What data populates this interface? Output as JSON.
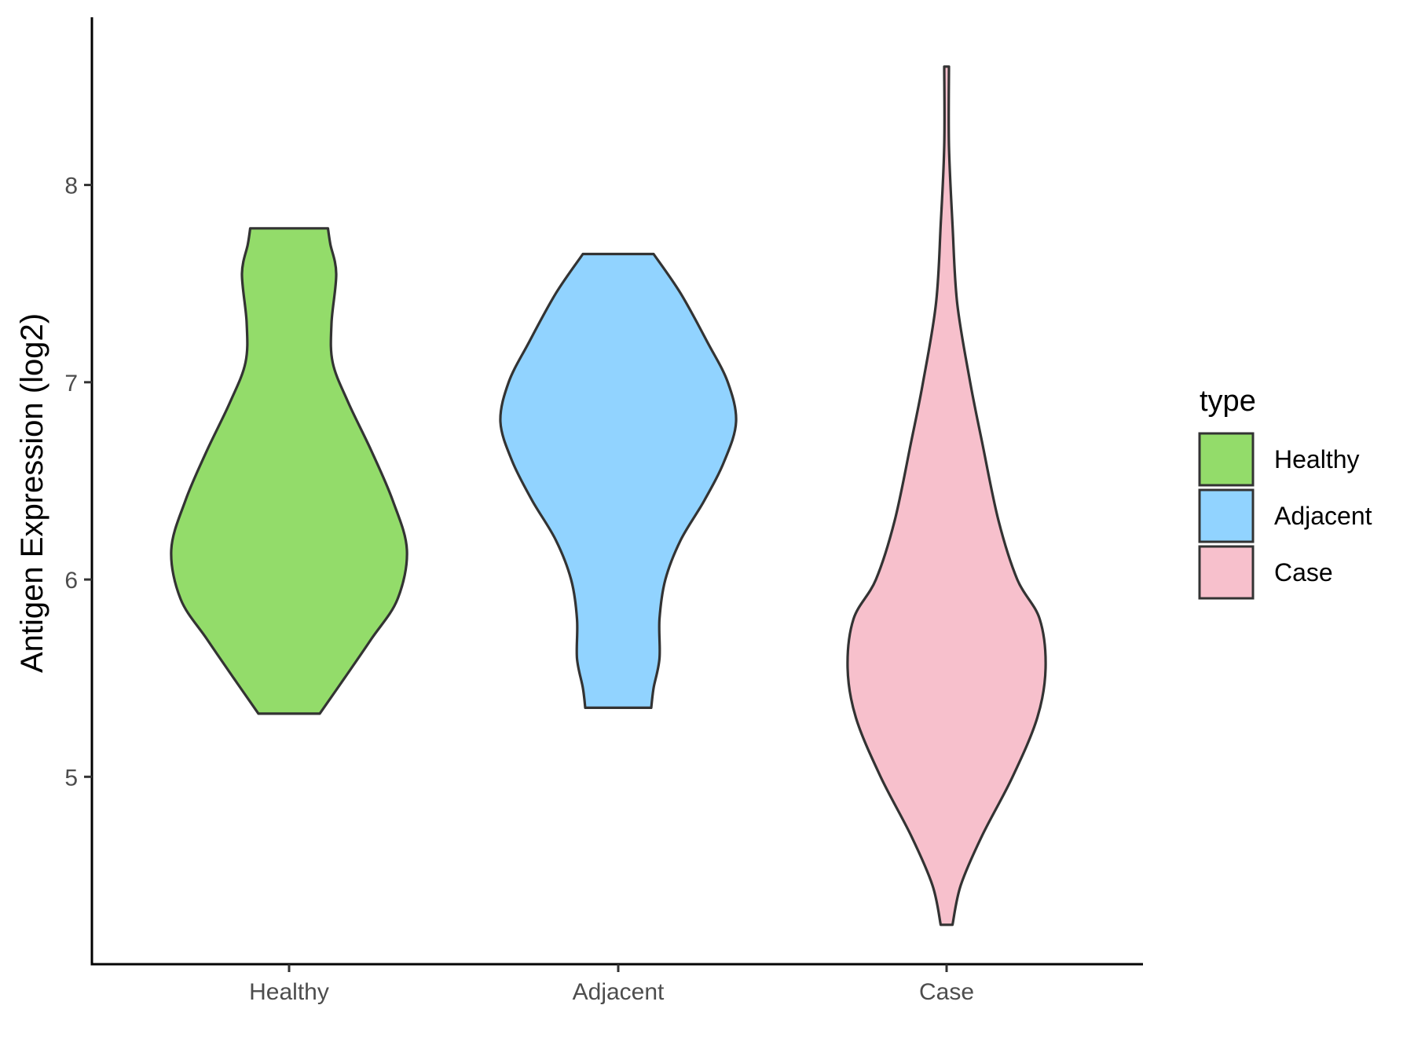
{
  "chart_data": {
    "type": "violin",
    "ylabel": "Antigen Expression (log2)",
    "xlabel": "",
    "ylim": [
      4.05,
      8.85
    ],
    "yticks": [
      5,
      6,
      7,
      8
    ],
    "categories": [
      "Healthy",
      "Adjacent",
      "Case"
    ],
    "legend": {
      "title": "type",
      "position": "right"
    },
    "series": [
      {
        "name": "Healthy",
        "color": "#93DC6A",
        "min": 5.32,
        "max": 7.78,
        "density": [
          [
            5.32,
            0.26
          ],
          [
            5.5,
            0.47
          ],
          [
            5.7,
            0.7
          ],
          [
            5.9,
            0.92
          ],
          [
            6.15,
            1.0
          ],
          [
            6.4,
            0.88
          ],
          [
            6.65,
            0.7
          ],
          [
            6.9,
            0.5
          ],
          [
            7.1,
            0.37
          ],
          [
            7.3,
            0.36
          ],
          [
            7.55,
            0.4
          ],
          [
            7.7,
            0.35
          ],
          [
            7.78,
            0.33
          ]
        ]
      },
      {
        "name": "Adjacent",
        "color": "#91D3FF",
        "min": 5.35,
        "max": 7.65,
        "density": [
          [
            5.35,
            0.28
          ],
          [
            5.45,
            0.3
          ],
          [
            5.6,
            0.35
          ],
          [
            5.8,
            0.35
          ],
          [
            6.0,
            0.4
          ],
          [
            6.2,
            0.53
          ],
          [
            6.4,
            0.73
          ],
          [
            6.6,
            0.9
          ],
          [
            6.8,
            1.0
          ],
          [
            7.0,
            0.93
          ],
          [
            7.2,
            0.76
          ],
          [
            7.45,
            0.53
          ],
          [
            7.65,
            0.3
          ]
        ]
      },
      {
        "name": "Case",
        "color": "#F7C0CC",
        "min": 4.25,
        "max": 8.6,
        "density": [
          [
            4.25,
            0.05
          ],
          [
            4.45,
            0.12
          ],
          [
            4.7,
            0.3
          ],
          [
            5.0,
            0.56
          ],
          [
            5.3,
            0.77
          ],
          [
            5.55,
            0.84
          ],
          [
            5.8,
            0.79
          ],
          [
            6.0,
            0.6
          ],
          [
            6.3,
            0.44
          ],
          [
            6.7,
            0.3
          ],
          [
            7.0,
            0.2
          ],
          [
            7.4,
            0.09
          ],
          [
            7.8,
            0.05
          ],
          [
            8.2,
            0.02
          ],
          [
            8.6,
            0.02
          ]
        ]
      }
    ]
  }
}
